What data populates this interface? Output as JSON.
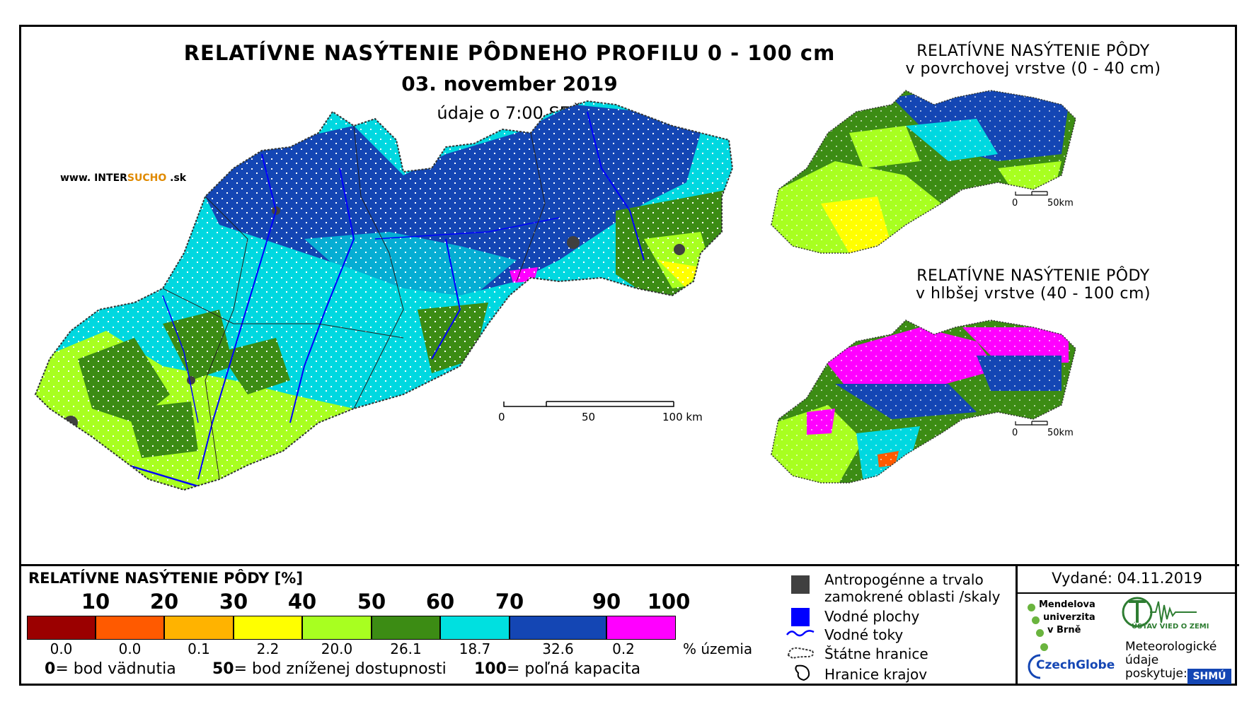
{
  "main": {
    "title": "RELATÍVNE NASÝTENIE PÔDNEHO PROFILU 0 - 100 cm",
    "date": "03. november 2019",
    "time_note": "údaje o 7:00 SEČ",
    "website_prefix": "www. INTER",
    "website_accent": "SUCHO",
    "website_suffix": " .sk",
    "scale": {
      "labels": [
        "0",
        "50",
        "100 km"
      ]
    }
  },
  "side_maps": [
    {
      "title_line1": "RELATÍVNE NASÝTENIE PÔDY",
      "title_line2": "v povrchovej vrstve (0 - 40 cm)",
      "scale_labels": [
        "0",
        "50km"
      ]
    },
    {
      "title_line1": "RELATÍVNE NASÝTENIE PÔDY",
      "title_line2": "v hlbšej vrstve (40 - 100 cm)",
      "scale_labels": [
        "0",
        "50km"
      ]
    }
  ],
  "legend": {
    "title": "RELATÍVNE NASÝTENIE PÔDY [%]",
    "bin_labels": [
      "10",
      "20",
      "30",
      "40",
      "50",
      "60",
      "70",
      "90",
      "100"
    ],
    "bins": [
      {
        "color": "#9b0000",
        "share": "0.0"
      },
      {
        "color": "#ff5a00",
        "share": "0.0"
      },
      {
        "color": "#ffb300",
        "share": "0.1"
      },
      {
        "color": "#ffff00",
        "share": "2.2"
      },
      {
        "color": "#a8ff20",
        "share": "20.0"
      },
      {
        "color": "#3c8c14",
        "share": "26.1"
      },
      {
        "color": "#00e0e0",
        "share": "18.7"
      },
      {
        "color": "#1446b4",
        "share": "32.6"
      },
      {
        "color": "#ff00ff",
        "share": "0.2"
      }
    ],
    "units": "% územia",
    "notes": [
      {
        "value": "0",
        "text": "= bod vädnutia"
      },
      {
        "value": "50",
        "text": "= bod zníženej dostupnosti"
      },
      {
        "value": "100",
        "text": "= poľná kapacita"
      }
    ]
  },
  "symbols": {
    "anthropogenic_line1": "Antropogénne a trvalo",
    "anthropogenic_line2": "zamokrené oblasti /skaly",
    "water_areas": "Vodné plochy",
    "water_flows": "Vodné toky",
    "state_border": "Štátne hranice",
    "region_border": "Hranice krajov",
    "colors": {
      "anthropogenic": "#404040",
      "water": "#0000ff"
    }
  },
  "credits": {
    "issued": "Vydané: 04.11.2019",
    "mendel": [
      "Mendelova",
      "univerzita",
      "v Brně"
    ],
    "czechglobe": "CzechGlobe",
    "ustav": "ÚSTAV VIED O ZEMI",
    "meteo": [
      "Meteorologické",
      "údaje",
      "poskytuje:"
    ],
    "shmu": "SHMÚ"
  }
}
